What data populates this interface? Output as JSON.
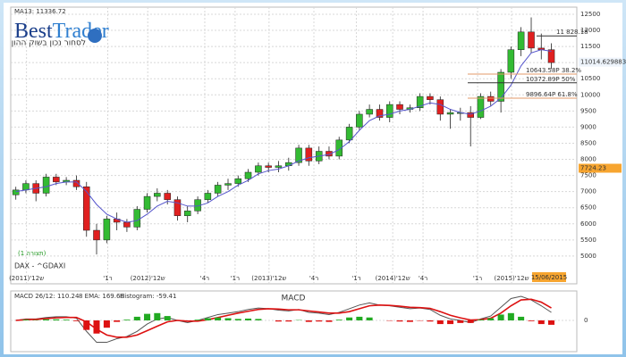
{
  "chart_data": [
    {
      "type": "candlestick",
      "indicator_label": "MA13: 11336.72",
      "logo_parts": [
        "Best",
        "Trader"
      ],
      "tagline": "לסחור נכון בשוק ההון",
      "symbol": "DAX - ^GDAXI",
      "pattern_label": "(1 תצורה)",
      "date_label": "15/06/2015",
      "up_color": "#33bb33",
      "down_color": "#e02020",
      "ma_color": "#5555cc",
      "grid": true,
      "xlim": [
        2011.0,
        2015.668
      ],
      "xticks": [
        {
          "value": 2011.13,
          "label": "(2011)'12ש"
        },
        {
          "value": 2011.8,
          "label": "'1ר"
        },
        {
          "value": 2012.13,
          "label": "(2012)'12ש"
        },
        {
          "value": 2012.6,
          "label": "'4ר"
        },
        {
          "value": 2012.85,
          "label": "'1ר"
        },
        {
          "value": 2013.13,
          "label": "(2013)'12ש"
        },
        {
          "value": 2013.5,
          "label": "'4ר"
        },
        {
          "value": 2013.85,
          "label": "'1ר"
        },
        {
          "value": 2014.15,
          "label": "(2014)'12ש"
        },
        {
          "value": 2014.4,
          "label": "'4ר"
        },
        {
          "value": 2014.85,
          "label": "'1ר"
        },
        {
          "value": 2015.13,
          "label": "(2015)'12ש"
        }
      ],
      "ylim": [
        4140,
        12720
      ],
      "yticks": [
        5000,
        5500,
        6000,
        6500,
        7000,
        7500,
        8000,
        8500,
        9000,
        9500,
        10000,
        10500,
        11000,
        11500,
        12000,
        12500
      ],
      "x": [
        2011.042,
        2011.125,
        2011.208,
        2011.292,
        2011.375,
        2011.458,
        2011.542,
        2011.625,
        2011.708,
        2011.792,
        2011.875,
        2011.958,
        2012.042,
        2012.125,
        2012.208,
        2012.292,
        2012.375,
        2012.458,
        2012.542,
        2012.625,
        2012.708,
        2012.792,
        2012.875,
        2012.958,
        2013.042,
        2013.125,
        2013.208,
        2013.292,
        2013.375,
        2013.458,
        2013.542,
        2013.625,
        2013.708,
        2013.792,
        2013.875,
        2013.958,
        2014.042,
        2014.125,
        2014.208,
        2014.292,
        2014.375,
        2014.458,
        2014.542,
        2014.625,
        2014.708,
        2014.792,
        2014.875,
        2014.958,
        2015.042,
        2015.125,
        2015.208,
        2015.292,
        2015.375,
        2015.458
      ],
      "open": [
        6900,
        7050,
        7250,
        6950,
        7450,
        7300,
        7350,
        7150,
        5800,
        5500,
        6150,
        6050,
        5900,
        6450,
        6850,
        6950,
        6750,
        6250,
        6400,
        6750,
        6950,
        7200,
        7250,
        7400,
        7600,
        7800,
        7750,
        7800,
        7900,
        8350,
        7950,
        8250,
        8100,
        8600,
        9000,
        9400,
        9550,
        9300,
        9700,
        9550,
        9600,
        9950,
        9850,
        9400,
        9450,
        9450,
        9300,
        9950,
        9800,
        10700,
        11400,
        11950,
        11450,
        11400
      ],
      "high": [
        7150,
        7350,
        7350,
        7550,
        7550,
        7450,
        7500,
        7300,
        6000,
        6250,
        6350,
        6150,
        6550,
        6950,
        7100,
        7050,
        6850,
        6550,
        6850,
        7050,
        7300,
        7400,
        7500,
        7700,
        7900,
        7900,
        7950,
        8050,
        8450,
        8450,
        8400,
        8400,
        8700,
        9100,
        9500,
        9700,
        9700,
        9800,
        9800,
        9700,
        10050,
        10050,
        9950,
        9550,
        9600,
        9650,
        10050,
        10100,
        10800,
        11500,
        12100,
        12400,
        11900,
        11600
      ],
      "low": [
        6750,
        6950,
        6700,
        6850,
        7200,
        7200,
        7050,
        5600,
        5050,
        5400,
        5800,
        5750,
        5800,
        6350,
        6700,
        6600,
        6100,
        6050,
        6300,
        6650,
        6850,
        7050,
        7150,
        7300,
        7500,
        7600,
        7600,
        7650,
        7800,
        7800,
        7850,
        8000,
        8000,
        8500,
        8900,
        9300,
        9200,
        9150,
        9400,
        9450,
        9500,
        9700,
        9200,
        8950,
        9200,
        8400,
        9250,
        9650,
        9450,
        10500,
        11200,
        11300,
        11100,
        10800
      ],
      "close": [
        7050,
        7250,
        6950,
        7450,
        7300,
        7350,
        7150,
        5800,
        5500,
        6150,
        6050,
        5900,
        6450,
        6850,
        6950,
        6750,
        6250,
        6400,
        6750,
        6950,
        7200,
        7250,
        7400,
        7600,
        7800,
        7750,
        7800,
        7900,
        8350,
        7950,
        8250,
        8100,
        8600,
        9000,
        9400,
        9550,
        9300,
        9700,
        9550,
        9600,
        9950,
        9850,
        9400,
        9450,
        9450,
        9300,
        9950,
        9800,
        10700,
        11400,
        11950,
        11450,
        11400,
        11000
      ],
      "ma_values": [
        7000,
        7050,
        7100,
        7150,
        7250,
        7300,
        7300,
        7000,
        6600,
        6300,
        6150,
        6050,
        6100,
        6300,
        6550,
        6700,
        6650,
        6550,
        6550,
        6650,
        6850,
        7000,
        7200,
        7350,
        7550,
        7650,
        7700,
        7800,
        7950,
        8050,
        8100,
        8150,
        8300,
        8550,
        8900,
        9200,
        9350,
        9400,
        9500,
        9550,
        9650,
        9750,
        9700,
        9550,
        9450,
        9400,
        9500,
        9650,
        9900,
        10300,
        10900,
        11300,
        11400,
        11350
      ],
      "levels": [
        {
          "value": 11828.18,
          "label": "11 828.18"
        },
        {
          "value": 10643.58,
          "label": "10643.58P 38.2%"
        },
        {
          "value": 10372.89,
          "label": "10372.89P 50%"
        },
        {
          "value": 9896.64,
          "label": "9896.64P 61.8%"
        }
      ],
      "price_markers": [
        11014.629883,
        7724.23
      ]
    },
    {
      "type": "macd",
      "title": "MACD",
      "ylim": [
        -330,
        330
      ],
      "yticks": [
        0
      ],
      "x": [
        2011.042,
        2011.125,
        2011.208,
        2011.292,
        2011.375,
        2011.458,
        2011.542,
        2011.625,
        2011.708,
        2011.792,
        2011.875,
        2011.958,
        2012.042,
        2012.125,
        2012.208,
        2012.292,
        2012.375,
        2012.458,
        2012.542,
        2012.625,
        2012.708,
        2012.792,
        2012.875,
        2012.958,
        2013.042,
        2013.125,
        2013.208,
        2013.292,
        2013.375,
        2013.458,
        2013.542,
        2013.625,
        2013.708,
        2013.792,
        2013.875,
        2013.958,
        2014.042,
        2014.125,
        2014.208,
        2014.292,
        2014.375,
        2014.458,
        2014.542,
        2014.625,
        2014.708,
        2014.792,
        2014.875,
        2014.958,
        2015.042,
        2015.125,
        2015.208,
        2015.292,
        2015.375,
        2015.458
      ],
      "series": [
        {
          "name": "MACD 26/12: 110.24",
          "color": "#555555",
          "values": [
            0,
            20,
            20,
            40,
            50,
            50,
            30,
            -150,
            -300,
            -300,
            -250,
            -220,
            -150,
            -50,
            20,
            40,
            0,
            -30,
            0,
            40,
            80,
            100,
            120,
            150,
            170,
            160,
            140,
            130,
            150,
            110,
            100,
            80,
            110,
            160,
            210,
            240,
            210,
            200,
            180,
            160,
            170,
            150,
            70,
            20,
            0,
            -30,
            20,
            60,
            180,
            300,
            330,
            280,
            200,
            110
          ]
        },
        {
          "name": "8 EMA: 169.66",
          "color": "#dd1111",
          "values": [
            0,
            10,
            15,
            25,
            35,
            40,
            40,
            -20,
            -120,
            -200,
            -230,
            -230,
            -200,
            -140,
            -80,
            -20,
            0,
            -10,
            -10,
            10,
            40,
            70,
            100,
            125,
            150,
            160,
            155,
            145,
            145,
            130,
            115,
            100,
            100,
            120,
            160,
            200,
            210,
            205,
            195,
            180,
            175,
            165,
            120,
            70,
            35,
            5,
            10,
            30,
            100,
            200,
            280,
            290,
            250,
            170
          ]
        },
        {
          "name": "Histogram: -59.41",
          "color": "#22aa22",
          "neg_color": "#dd1111",
          "values": [
            0,
            10,
            5,
            15,
            15,
            10,
            -10,
            -130,
            -180,
            -100,
            -20,
            10,
            50,
            90,
            100,
            60,
            0,
            -20,
            10,
            30,
            40,
            30,
            20,
            25,
            20,
            0,
            -15,
            -15,
            5,
            -20,
            -15,
            -20,
            10,
            40,
            50,
            40,
            0,
            -5,
            -15,
            -20,
            -5,
            -15,
            -50,
            -50,
            -35,
            -35,
            10,
            30,
            80,
            100,
            50,
            -10,
            -50,
            -60
          ]
        }
      ]
    }
  ]
}
